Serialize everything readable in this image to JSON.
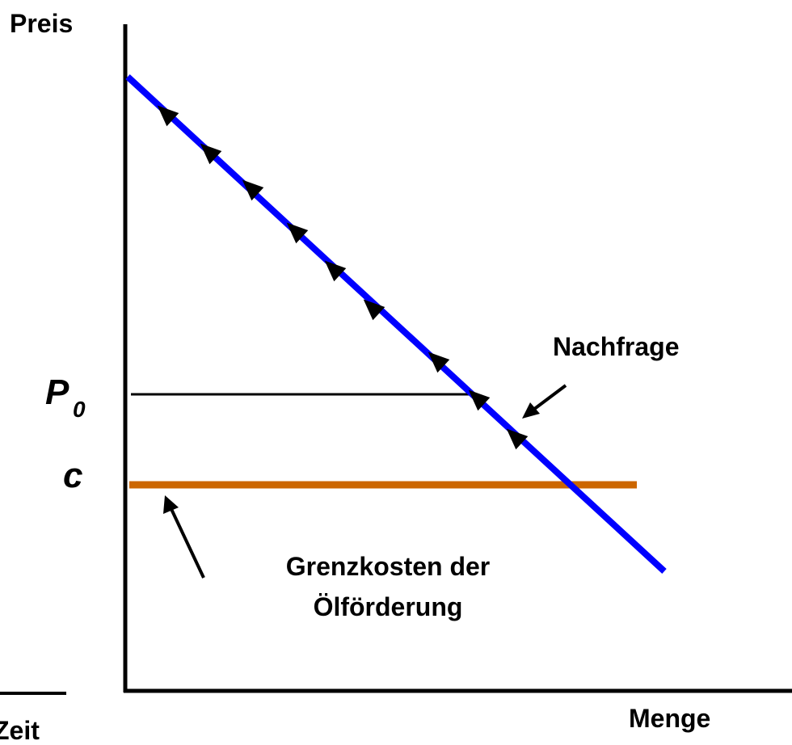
{
  "axes": {
    "y_label": "Preis",
    "x_label": "Menge",
    "left_label": "Zeit"
  },
  "labels": {
    "demand": "Nachfrage",
    "price": {
      "symbol": "P",
      "subscript": "0"
    },
    "cost": "c",
    "cost_curve": [
      "Grenzkosten der",
      "Ölförderung"
    ]
  }
}
